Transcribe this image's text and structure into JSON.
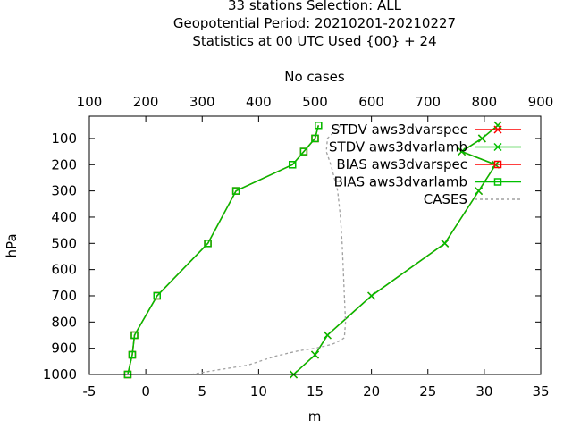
{
  "chart_data": {
    "type": "line",
    "title_lines": [
      "33 stations Selection: ALL",
      "Geopotential  Period: 20210201-20210227",
      "Statistics at 00 UTC  Used {00} + 24"
    ],
    "xlabel": "m",
    "ylabel": "hPa",
    "x2label": "No cases",
    "xlim": [
      -5,
      35
    ],
    "x2lim": [
      100,
      900
    ],
    "ylim": [
      1000,
      15
    ],
    "xticks": [
      "-5",
      "0",
      "5",
      "10",
      "15",
      "20",
      "25",
      "30",
      "35"
    ],
    "x2ticks": [
      "100",
      "200",
      "300",
      "400",
      "500",
      "600",
      "700",
      "800",
      "900"
    ],
    "yticks": [
      "100",
      "200",
      "300",
      "400",
      "500",
      "600",
      "700",
      "800",
      "900",
      "1000"
    ],
    "grid": false,
    "legend_position": "top-right",
    "series": [
      {
        "name": "STDV aws3dvarspec",
        "color": "#ff0000",
        "marker": "x",
        "points": [
          [
            13.1,
            1000
          ],
          [
            15.0,
            925
          ],
          [
            16.1,
            850
          ],
          [
            20.0,
            700
          ],
          [
            26.5,
            500
          ],
          [
            29.5,
            300
          ],
          [
            31.0,
            200
          ],
          [
            28.0,
            150
          ],
          [
            29.8,
            100
          ],
          [
            31.2,
            50
          ]
        ]
      },
      {
        "name": "STDV aws3dvarlamb",
        "color": "#00c000",
        "marker": "x",
        "points": [
          [
            13.1,
            1000
          ],
          [
            15.0,
            925
          ],
          [
            16.1,
            850
          ],
          [
            20.0,
            700
          ],
          [
            26.5,
            500
          ],
          [
            29.5,
            300
          ],
          [
            31.0,
            200
          ],
          [
            28.0,
            150
          ],
          [
            29.8,
            100
          ],
          [
            31.2,
            50
          ]
        ]
      },
      {
        "name": "BIAS aws3dvarspec",
        "color": "#ff0000",
        "marker": "square",
        "points": [
          [
            -1.6,
            1000
          ],
          [
            -1.2,
            925
          ],
          [
            -1.0,
            850
          ],
          [
            1.0,
            700
          ],
          [
            5.5,
            500
          ],
          [
            8.0,
            300
          ],
          [
            13.0,
            200
          ],
          [
            14.0,
            150
          ],
          [
            15.0,
            100
          ],
          [
            15.3,
            50
          ]
        ]
      },
      {
        "name": "BIAS aws3dvarlamb",
        "color": "#00c000",
        "marker": "square",
        "points": [
          [
            -1.6,
            1000
          ],
          [
            -1.2,
            925
          ],
          [
            -1.0,
            850
          ],
          [
            1.0,
            700
          ],
          [
            5.5,
            500
          ],
          [
            8.0,
            300
          ],
          [
            13.0,
            200
          ],
          [
            14.0,
            150
          ],
          [
            15.0,
            100
          ],
          [
            15.3,
            50
          ]
        ]
      },
      {
        "name": "CASES",
        "color": "#a0a0a0",
        "marker": "none",
        "axis": "top",
        "points": [
          [
            545,
            50
          ],
          [
            522,
            100
          ],
          [
            520,
            150
          ],
          [
            528,
            200
          ],
          [
            540,
            300
          ],
          [
            545,
            400
          ],
          [
            548,
            500
          ],
          [
            550,
            600
          ],
          [
            552,
            700
          ],
          [
            554,
            800
          ],
          [
            552,
            860
          ],
          [
            545,
            870
          ],
          [
            530,
            885
          ],
          [
            500,
            900
          ],
          [
            470,
            910
          ],
          [
            430,
            930
          ],
          [
            380,
            965
          ],
          [
            320,
            985
          ],
          [
            280,
            1000
          ]
        ]
      }
    ]
  }
}
